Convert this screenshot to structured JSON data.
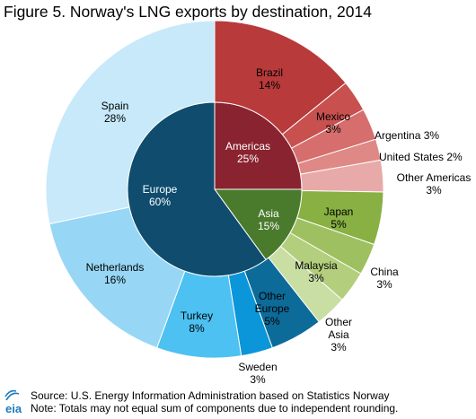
{
  "title": "Figure 5.  Norway's LNG exports by destination, 2014",
  "footer": {
    "source": "Source: U.S. Energy Information  Administration based on Statistics Norway",
    "note": "Note:  Totals may not equal sum of components  due to independent  rounding."
  },
  "logo": {
    "text": "eia",
    "icon": "eia-logo",
    "accent": "#1b7abf"
  },
  "chart_data": {
    "type": "pie",
    "title": "Figure 5.  Norway's LNG exports by destination, 2014",
    "inner": [
      {
        "name": "Americas",
        "label": "25%",
        "value": 25,
        "color": "#8a2330",
        "text_color": "#ffffff"
      },
      {
        "name": "Asia",
        "label": "15%",
        "value": 15,
        "color": "#4a7a2c",
        "text_color": "#ffffff"
      },
      {
        "name": "Europe",
        "label": "60%",
        "value": 60,
        "color": "#0f4c6e",
        "text_color": "#ffffff"
      }
    ],
    "outer": [
      {
        "name": "Brazil",
        "label": "14%",
        "value": 14,
        "color": "#b83a3a"
      },
      {
        "name": "Mexico",
        "label": "3%",
        "value": 3,
        "color": "#c8504f"
      },
      {
        "name": "Argentina",
        "label": "3%",
        "value": 3,
        "color": "#d56e6c"
      },
      {
        "name": "United States",
        "label": "2%",
        "value": 2,
        "color": "#de8985"
      },
      {
        "name": "Other Americas",
        "label": "3%",
        "value": 3,
        "color": "#e8aaa8"
      },
      {
        "name": "Japan",
        "label": "5%",
        "value": 5,
        "color": "#88b043"
      },
      {
        "name": "China",
        "label": "3%",
        "value": 3,
        "color": "#9fc060"
      },
      {
        "name": "Malaysia",
        "label": "3%",
        "value": 3,
        "color": "#b3ce7d"
      },
      {
        "name": "Other Asia",
        "label": "3%",
        "value": 3,
        "color": "#c9dea3"
      },
      {
        "name": "Other Europe",
        "label": "5%",
        "value": 5,
        "color": "#0d6b99"
      },
      {
        "name": "Sweden",
        "label": "3%",
        "value": 3,
        "color": "#0a96d8"
      },
      {
        "name": "Turkey",
        "label": "8%",
        "value": 8,
        "color": "#4cc1f2"
      },
      {
        "name": "Netherlands",
        "label": "16%",
        "value": 16,
        "color": "#97d7f5"
      },
      {
        "name": "Spain",
        "label": "28%",
        "value": 28,
        "color": "#c7e9fa"
      }
    ]
  }
}
